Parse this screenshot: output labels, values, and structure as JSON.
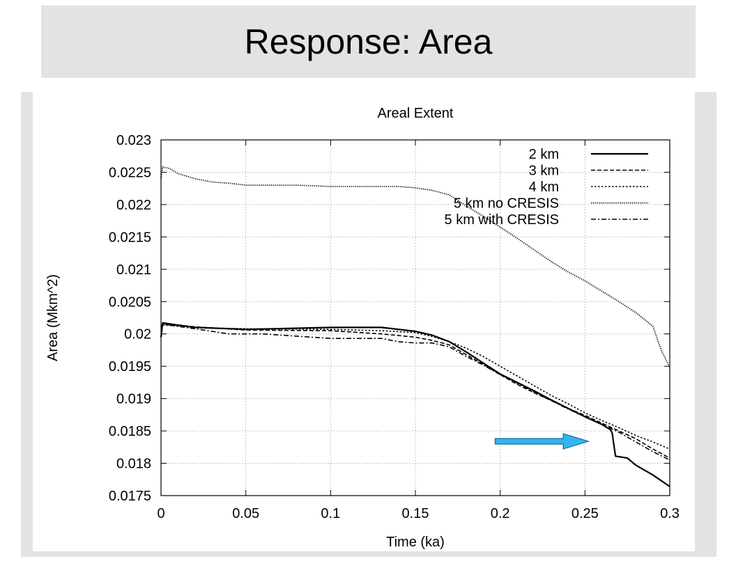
{
  "slide": {
    "title": "Response: Area"
  },
  "colors": {
    "title_background": "#e3e3e3",
    "frame_background": "#e3e3e3",
    "arrow_fill": "#33b5f0",
    "arrow_stroke": "#1a6a9a",
    "series_color": "#000000",
    "grid_color": "#b4b4b4"
  },
  "chart_data": {
    "type": "line",
    "title": "Areal Extent",
    "xlabel": "Time (ka)",
    "ylabel": "Area (Mkm^2)",
    "xlim": [
      0,
      0.3
    ],
    "ylim": [
      0.0175,
      0.023
    ],
    "xticks": [
      0,
      0.05,
      0.1,
      0.15,
      0.2,
      0.25,
      0.3
    ],
    "xtick_labels": [
      "0",
      "0.05",
      "0.1",
      "0.15",
      "0.2",
      "0.25",
      "0.3"
    ],
    "yticks": [
      0.0175,
      0.018,
      0.0185,
      0.019,
      0.0195,
      0.02,
      0.0205,
      0.021,
      0.0215,
      0.022,
      0.0225,
      0.023
    ],
    "ytick_labels": [
      "0.0175",
      "0.018",
      "0.0185",
      "0.019",
      "0.0195",
      "0.02",
      "0.0205",
      "0.021",
      "0.0215",
      "0.022",
      "0.0225",
      "0.023"
    ],
    "grid": true,
    "legend_position": "top-right",
    "annotation": {
      "type": "arrow",
      "from": [
        0.197,
        0.01834
      ],
      "to": [
        0.252,
        0.01834
      ],
      "points_to_series": "2 km"
    },
    "series": [
      {
        "name": "2 km",
        "style": "solid",
        "x": [
          0,
          0.001,
          0.02,
          0.05,
          0.1,
          0.13,
          0.15,
          0.16,
          0.17,
          0.18,
          0.19,
          0.2,
          0.21,
          0.22,
          0.23,
          0.24,
          0.25,
          0.26,
          0.265,
          0.266,
          0.268,
          0.275,
          0.28,
          0.29,
          0.3
        ],
        "y": [
          0.01995,
          0.02017,
          0.0201,
          0.02007,
          0.0201,
          0.0201,
          0.02004,
          0.01998,
          0.01988,
          0.01972,
          0.01955,
          0.01938,
          0.01925,
          0.01912,
          0.01898,
          0.01885,
          0.01872,
          0.0186,
          0.01852,
          0.01847,
          0.01811,
          0.01808,
          0.01797,
          0.01782,
          0.01764
        ]
      },
      {
        "name": "3 km",
        "style": "dashed",
        "x": [
          0,
          0.001,
          0.02,
          0.05,
          0.1,
          0.13,
          0.15,
          0.16,
          0.17,
          0.18,
          0.19,
          0.2,
          0.21,
          0.22,
          0.23,
          0.24,
          0.25,
          0.26,
          0.27,
          0.28,
          0.29,
          0.3
        ],
        "y": [
          0.0201,
          0.02015,
          0.02011,
          0.02006,
          0.02005,
          0.02,
          0.01995,
          0.0199,
          0.01983,
          0.01968,
          0.01953,
          0.01937,
          0.01922,
          0.01909,
          0.01897,
          0.01885,
          0.01874,
          0.01862,
          0.0185,
          0.01838,
          0.01822,
          0.01808
        ]
      },
      {
        "name": "4 km",
        "style": "dotted",
        "x": [
          0,
          0.001,
          0.02,
          0.05,
          0.1,
          0.13,
          0.15,
          0.16,
          0.17,
          0.18,
          0.19,
          0.2,
          0.21,
          0.22,
          0.23,
          0.24,
          0.25,
          0.26,
          0.27,
          0.28,
          0.29,
          0.3
        ],
        "y": [
          0.0201,
          0.02014,
          0.0201,
          0.02008,
          0.02007,
          0.02005,
          0.02002,
          0.01996,
          0.01988,
          0.01978,
          0.01965,
          0.0195,
          0.01935,
          0.0192,
          0.01905,
          0.01892,
          0.01878,
          0.01866,
          0.01855,
          0.01843,
          0.01833,
          0.01822
        ]
      },
      {
        "name": "5 km no CRESIS",
        "style": "fine-dotted",
        "x": [
          0,
          0.001,
          0.005,
          0.01,
          0.02,
          0.03,
          0.04,
          0.05,
          0.08,
          0.1,
          0.12,
          0.14,
          0.15,
          0.16,
          0.17,
          0.18,
          0.19,
          0.2,
          0.21,
          0.22,
          0.23,
          0.24,
          0.25,
          0.26,
          0.27,
          0.28,
          0.29,
          0.295,
          0.3
        ],
        "y": [
          0.0224,
          0.02258,
          0.02256,
          0.02248,
          0.0224,
          0.02235,
          0.02233,
          0.0223,
          0.0223,
          0.02228,
          0.02228,
          0.02228,
          0.02226,
          0.02222,
          0.02215,
          0.02198,
          0.02182,
          0.02165,
          0.02148,
          0.0213,
          0.02112,
          0.02096,
          0.02082,
          0.02066,
          0.0205,
          0.02033,
          0.02012,
          0.01975,
          0.01948
        ]
      },
      {
        "name": "5 km with CRESIS",
        "style": "dash-dot",
        "x": [
          0,
          0.001,
          0.02,
          0.04,
          0.06,
          0.1,
          0.13,
          0.14,
          0.15,
          0.16,
          0.17,
          0.18,
          0.19,
          0.2,
          0.21,
          0.22,
          0.23,
          0.24,
          0.25,
          0.26,
          0.27,
          0.28,
          0.29,
          0.3
        ],
        "y": [
          0.0201,
          0.02015,
          0.02008,
          0.02,
          0.02,
          0.01993,
          0.01993,
          0.01988,
          0.01986,
          0.01986,
          0.0198,
          0.01965,
          0.01952,
          0.01937,
          0.01924,
          0.0191,
          0.01897,
          0.01884,
          0.01872,
          0.0186,
          0.01848,
          0.01833,
          0.01818,
          0.01805
        ]
      }
    ]
  }
}
